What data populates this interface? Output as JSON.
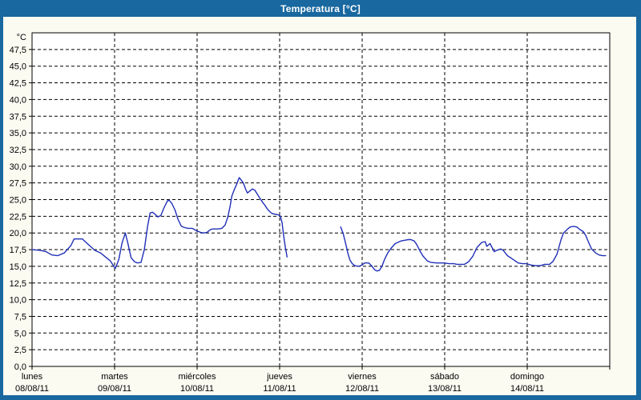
{
  "window": {
    "title": "Temperatura [°C]",
    "title_bar_color": "#19689f",
    "content_bg": "#fcfbf2"
  },
  "chart_data": {
    "type": "line",
    "title": "Temperatura [°C]",
    "ylabel": "°C",
    "xlabel": "",
    "ylim": [
      0,
      50
    ],
    "ytick_min": 0,
    "ytick_max": 47.5,
    "ytick_step": 2.5,
    "decimal_separator": ",",
    "grid": "dashed",
    "legend": "none",
    "frame_color": "#000000",
    "grid_color": "#000000",
    "line_color": "#2130b8",
    "x_unit": "days",
    "xlim": [
      0,
      7
    ],
    "days": [
      {
        "name": "lunes",
        "date": "08/08/11"
      },
      {
        "name": "martes",
        "date": "09/08/11"
      },
      {
        "name": "miércoles",
        "date": "10/08/11"
      },
      {
        "name": "jueves",
        "date": "11/08/11"
      },
      {
        "name": "viernes",
        "date": "12/08/11"
      },
      {
        "name": "sábado",
        "date": "13/08/11"
      },
      {
        "name": "domingo",
        "date": "14/08/11"
      }
    ],
    "series": [
      {
        "name": "Temperatura",
        "segments": [
          [
            [
              0.0,
              17.5
            ],
            [
              0.1,
              17.4
            ],
            [
              0.17,
              17.2
            ],
            [
              0.24,
              16.7
            ],
            [
              0.31,
              16.6
            ],
            [
              0.39,
              17.0
            ],
            [
              0.47,
              18.1
            ],
            [
              0.51,
              19.1
            ],
            [
              0.61,
              19.1
            ],
            [
              0.68,
              18.3
            ],
            [
              0.76,
              17.4
            ],
            [
              0.83,
              17.0
            ],
            [
              0.9,
              16.3
            ],
            [
              0.95,
              15.8
            ],
            [
              0.99,
              15.0
            ],
            [
              1.01,
              14.7
            ],
            [
              1.05,
              16.0
            ],
            [
              1.09,
              18.5
            ],
            [
              1.13,
              20.0
            ],
            [
              1.16,
              18.5
            ],
            [
              1.2,
              16.3
            ],
            [
              1.24,
              15.7
            ],
            [
              1.28,
              15.5
            ],
            [
              1.32,
              15.6
            ],
            [
              1.36,
              17.5
            ],
            [
              1.4,
              21.0
            ],
            [
              1.43,
              23.0
            ],
            [
              1.46,
              23.1
            ],
            [
              1.5,
              22.7
            ],
            [
              1.52,
              22.4
            ],
            [
              1.56,
              22.6
            ],
            [
              1.6,
              23.8
            ],
            [
              1.64,
              24.8
            ],
            [
              1.66,
              24.9
            ],
            [
              1.69,
              24.5
            ],
            [
              1.73,
              23.5
            ],
            [
              1.77,
              22.0
            ],
            [
              1.81,
              21.0
            ],
            [
              1.85,
              20.8
            ],
            [
              1.89,
              20.7
            ],
            [
              1.94,
              20.7
            ],
            [
              2.0,
              20.3
            ],
            [
              2.04,
              20.1
            ],
            [
              2.08,
              20.0
            ],
            [
              2.12,
              20.1
            ],
            [
              2.16,
              20.5
            ],
            [
              2.19,
              20.6
            ],
            [
              2.25,
              20.6
            ],
            [
              2.3,
              20.7
            ],
            [
              2.34,
              21.2
            ],
            [
              2.37,
              22.3
            ],
            [
              2.4,
              24.0
            ],
            [
              2.42,
              25.5
            ],
            [
              2.45,
              26.5
            ],
            [
              2.48,
              27.3
            ],
            [
              2.51,
              28.3
            ],
            [
              2.53,
              28.0
            ],
            [
              2.56,
              27.5
            ],
            [
              2.59,
              26.5
            ],
            [
              2.61,
              26.0
            ],
            [
              2.64,
              26.3
            ],
            [
              2.67,
              26.6
            ],
            [
              2.7,
              26.4
            ],
            [
              2.73,
              25.8
            ],
            [
              2.76,
              25.2
            ],
            [
              2.8,
              24.5
            ],
            [
              2.83,
              24.0
            ],
            [
              2.85,
              23.6
            ],
            [
              2.88,
              23.2
            ],
            [
              2.91,
              22.9
            ],
            [
              2.95,
              22.8
            ],
            [
              2.99,
              22.7
            ],
            [
              3.01,
              22.5
            ],
            [
              3.03,
              21.5
            ],
            [
              3.05,
              19.5
            ],
            [
              3.07,
              17.8
            ],
            [
              3.09,
              16.4
            ]
          ],
          [
            [
              3.74,
              20.9
            ],
            [
              3.77,
              19.9
            ],
            [
              3.79,
              18.9
            ],
            [
              3.81,
              17.9
            ],
            [
              3.83,
              16.8
            ],
            [
              3.85,
              16.0
            ],
            [
              3.88,
              15.4
            ],
            [
              3.91,
              15.1
            ],
            [
              3.96,
              15.0
            ],
            [
              4.0,
              15.2
            ],
            [
              4.03,
              15.5
            ],
            [
              4.08,
              15.5
            ],
            [
              4.12,
              15.0
            ],
            [
              4.15,
              14.5
            ],
            [
              4.18,
              14.3
            ],
            [
              4.21,
              14.4
            ],
            [
              4.24,
              15.0
            ],
            [
              4.27,
              16.0
            ],
            [
              4.31,
              17.0
            ],
            [
              4.35,
              17.7
            ],
            [
              4.4,
              18.4
            ],
            [
              4.47,
              18.8
            ],
            [
              4.51,
              18.9
            ],
            [
              4.56,
              19.0
            ],
            [
              4.59,
              19.0
            ],
            [
              4.63,
              18.8
            ],
            [
              4.66,
              18.3
            ],
            [
              4.7,
              17.3
            ],
            [
              4.74,
              16.5
            ],
            [
              4.79,
              15.8
            ],
            [
              4.83,
              15.6
            ],
            [
              4.9,
              15.5
            ],
            [
              4.95,
              15.5
            ],
            [
              4.99,
              15.5
            ],
            [
              5.05,
              15.4
            ],
            [
              5.11,
              15.4
            ],
            [
              5.15,
              15.3
            ],
            [
              5.2,
              15.3
            ],
            [
              5.24,
              15.3
            ],
            [
              5.29,
              15.7
            ],
            [
              5.34,
              16.5
            ],
            [
              5.39,
              17.8
            ],
            [
              5.45,
              18.6
            ],
            [
              5.49,
              18.7
            ],
            [
              5.51,
              18.0
            ],
            [
              5.55,
              18.4
            ],
            [
              5.6,
              17.2
            ],
            [
              5.63,
              17.4
            ],
            [
              5.68,
              17.6
            ],
            [
              5.71,
              17.4
            ],
            [
              5.76,
              16.6
            ],
            [
              5.82,
              16.1
            ],
            [
              5.89,
              15.5
            ],
            [
              5.94,
              15.4
            ],
            [
              5.99,
              15.4
            ],
            [
              6.04,
              15.2
            ],
            [
              6.1,
              15.1
            ],
            [
              6.16,
              15.1
            ],
            [
              6.21,
              15.3
            ],
            [
              6.27,
              15.3
            ],
            [
              6.31,
              15.7
            ],
            [
              6.36,
              16.8
            ],
            [
              6.41,
              19.0
            ],
            [
              6.44,
              20.0
            ],
            [
              6.49,
              20.6
            ],
            [
              6.52,
              20.9
            ],
            [
              6.56,
              21.0
            ],
            [
              6.6,
              20.9
            ],
            [
              6.64,
              20.5
            ],
            [
              6.68,
              20.2
            ],
            [
              6.71,
              19.6
            ],
            [
              6.74,
              18.7
            ],
            [
              6.78,
              17.6
            ],
            [
              6.83,
              17.0
            ],
            [
              6.87,
              16.7
            ],
            [
              6.91,
              16.6
            ],
            [
              6.95,
              16.6
            ]
          ]
        ]
      }
    ]
  }
}
